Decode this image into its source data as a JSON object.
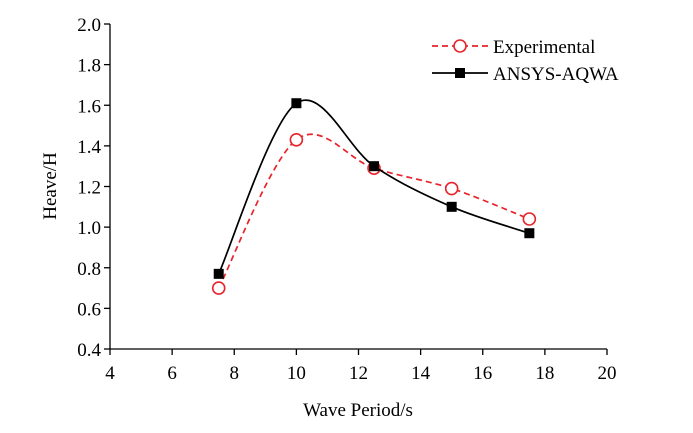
{
  "chart_data": {
    "type": "line",
    "title": "",
    "xlabel": "Wave Period/s",
    "ylabel": "Heave/H",
    "xlim": [
      4,
      20
    ],
    "ylim": [
      0.4,
      2.0
    ],
    "xticks": [
      4,
      6,
      8,
      10,
      12,
      14,
      16,
      18,
      20
    ],
    "yticks": [
      0.4,
      0.6,
      0.8,
      1.0,
      1.2,
      1.4,
      1.6,
      1.8,
      2.0
    ],
    "ytick_labels": [
      "0.4",
      "0.6",
      "0.8",
      "1.0",
      "1.2",
      "1.4",
      "1.6",
      "1.8",
      "2.0"
    ],
    "grid": false,
    "legend_position": "top-right",
    "series": [
      {
        "name": "Experimental",
        "color": "#e8242a",
        "line_style": "dashed",
        "marker": "open-circle",
        "x": [
          7.5,
          10.0,
          12.5,
          15.0,
          17.5
        ],
        "y": [
          0.7,
          1.43,
          1.29,
          1.19,
          1.04
        ]
      },
      {
        "name": "ANSYS-AQWA",
        "color": "#000000",
        "line_style": "solid",
        "marker": "filled-square",
        "x": [
          7.5,
          10.0,
          12.5,
          15.0,
          17.5
        ],
        "y": [
          0.77,
          1.61,
          1.3,
          1.1,
          0.97
        ]
      }
    ]
  }
}
